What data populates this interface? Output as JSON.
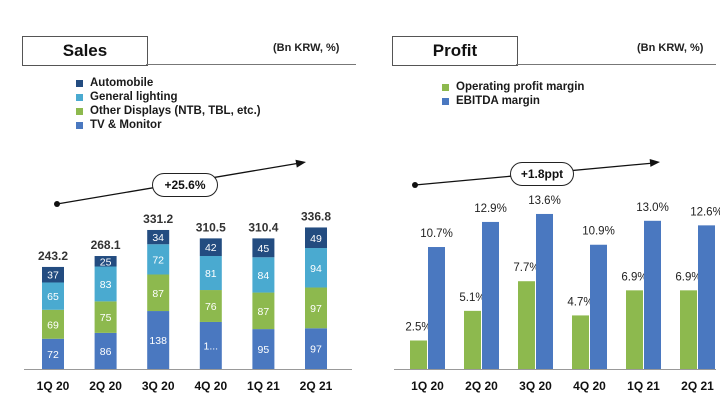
{
  "chart_data": [
    {
      "type": "bar",
      "stacked": true,
      "title": "Sales",
      "unit": "(Bn KRW, %)",
      "categories": [
        "1Q 20",
        "2Q 20",
        "3Q 20",
        "4Q 20",
        "1Q 21",
        "2Q 21"
      ],
      "series": [
        {
          "name": "TV & Monitor",
          "color": "#4a78c0",
          "values": [
            72,
            86,
            138,
            112,
            95,
            97
          ],
          "labels": [
            "72",
            "86",
            "138",
            "1...",
            "95",
            "97"
          ]
        },
        {
          "name": "Other Displays (NTB, TBL, etc.)",
          "color": "#8db94e",
          "values": [
            69,
            75,
            87,
            76,
            87,
            97
          ],
          "labels": [
            "69",
            "75",
            "87",
            "76",
            "87",
            "97"
          ]
        },
        {
          "name": "General lighting",
          "color": "#4aaad0",
          "values": [
            65,
            83,
            72,
            81,
            84,
            94
          ],
          "labels": [
            "65",
            "83",
            "72",
            "81",
            "84",
            "94"
          ]
        },
        {
          "name": "Automobile",
          "color": "#234c80",
          "values": [
            37,
            25,
            34,
            42,
            45,
            49
          ],
          "labels": [
            "37",
            "25",
            "34",
            "42",
            "45",
            "49"
          ]
        }
      ],
      "totals": [
        "243.2",
        "268.1",
        "331.2",
        "310.5",
        "310.4",
        "336.8"
      ],
      "growth_label": "+25.6%",
      "legend_order": [
        "Automobile",
        "General lighting",
        "Other Displays (NTB, TBL, etc.)",
        "TV & Monitor"
      ]
    },
    {
      "type": "bar",
      "stacked": false,
      "title": "Profit",
      "unit": "(Bn KRW, %)",
      "categories": [
        "1Q 20",
        "2Q 20",
        "3Q 20",
        "4Q 20",
        "1Q 21",
        "2Q 21"
      ],
      "series": [
        {
          "name": "Operating profit margin",
          "color": "#8db94e",
          "values": [
            2.5,
            5.1,
            7.7,
            4.7,
            6.9,
            6.9
          ],
          "labels": [
            "2.5%",
            "5.1%",
            "7.7%",
            "4.7%",
            "6.9%",
            "6.9%"
          ]
        },
        {
          "name": "EBITDA margin",
          "color": "#4a78c0",
          "values": [
            10.7,
            12.9,
            13.6,
            10.9,
            13.0,
            12.6
          ],
          "labels": [
            "10.7%",
            "12.9%",
            "13.6%",
            "10.9%",
            "13.0%",
            "12.6%"
          ]
        }
      ],
      "growth_label": "+1.8ppt",
      "legend_order": [
        "Operating profit margin",
        "EBITDA margin"
      ]
    }
  ]
}
